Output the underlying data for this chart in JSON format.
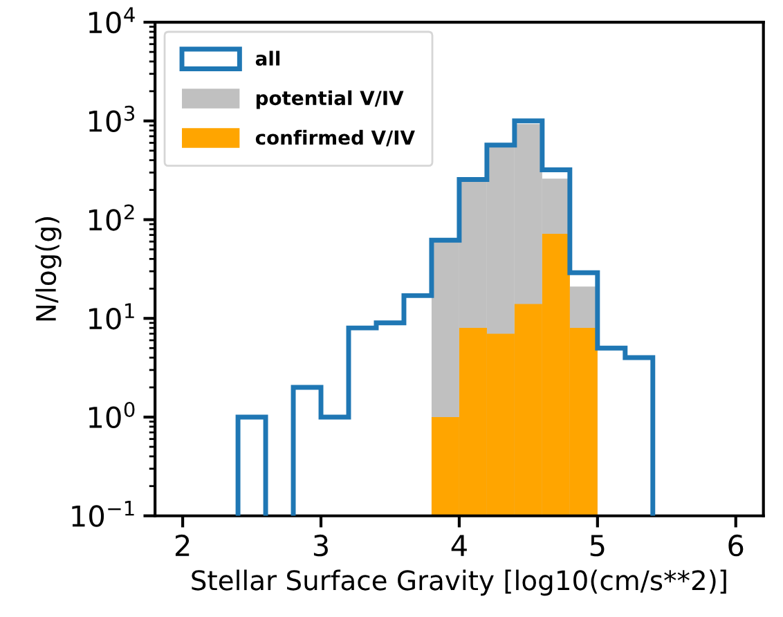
{
  "chart_data": {
    "type": "histogram",
    "xlabel": "Stellar Surface Gravity [log10(cm/s**2)]",
    "ylabel": "N/log(g)",
    "bins": [
      2.4,
      2.6,
      2.8,
      3.0,
      3.2,
      3.4,
      3.6,
      3.8,
      4.0,
      4.2,
      4.4,
      4.6,
      4.8,
      5.0,
      5.2,
      5.4
    ],
    "series": [
      {
        "name": "all",
        "color": "#1f77b4",
        "values": [
          1,
          null,
          2,
          1,
          8,
          9,
          17,
          62,
          255,
          570,
          1000,
          320,
          29,
          5,
          4
        ]
      },
      {
        "name": "potential V/IV",
        "color": "#c0c0c0",
        "values": [
          null,
          null,
          null,
          null,
          null,
          null,
          null,
          62,
          255,
          570,
          930,
          260,
          21,
          null,
          null
        ]
      },
      {
        "name": "confirmed V/IV",
        "color": "#ffa500",
        "values": [
          null,
          null,
          null,
          null,
          null,
          null,
          null,
          1,
          8,
          7,
          14,
          72,
          8,
          null,
          null
        ]
      }
    ],
    "log": "y",
    "xlim": [
      1.8,
      6.2
    ],
    "xticks": [
      2,
      3,
      4,
      5,
      6
    ],
    "ylim": [
      0.1,
      10000
    ],
    "yticks": [
      {
        "value": 0.1,
        "label": "10$^{−1}$"
      },
      {
        "value": 1,
        "label": "10$^{0}$"
      },
      {
        "value": 10,
        "label": "10$^{1}$"
      },
      {
        "value": 100,
        "label": "10$^{2}$"
      },
      {
        "value": 1000,
        "label": "10$^{3}$"
      },
      {
        "value": 10000,
        "label": "10$^{4}$"
      }
    ],
    "legend": "top left",
    "grid": false
  }
}
